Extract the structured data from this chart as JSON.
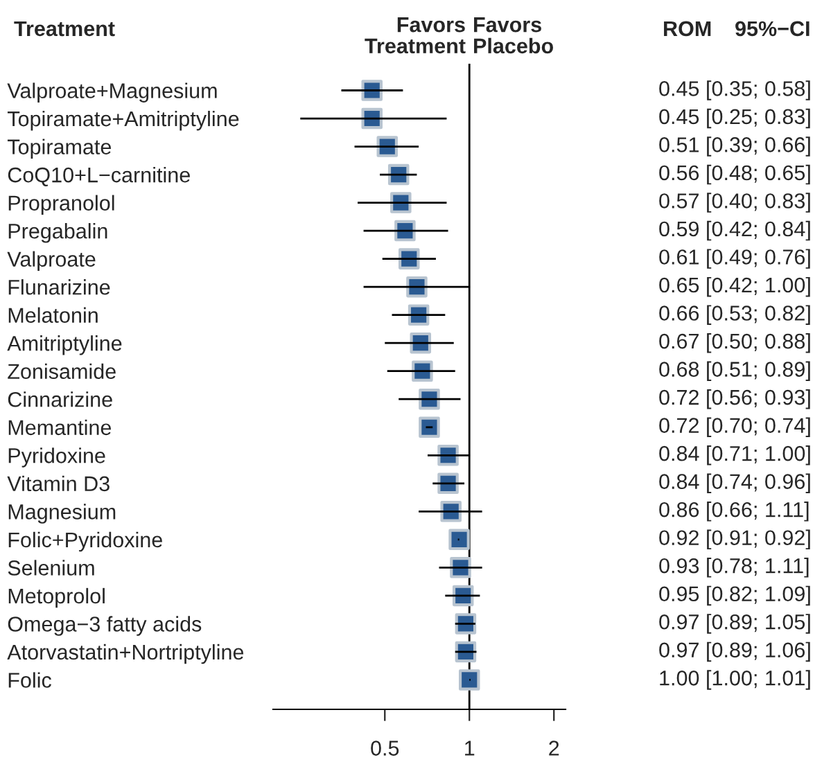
{
  "chart_data": {
    "type": "scatter",
    "orientation": "horizontal",
    "marker": "square",
    "log": "x",
    "color": "#2a5a92",
    "categories": [
      "Valproate+Magnesium",
      "Topiramate+Amitriptyline",
      "Topiramate",
      "CoQ10+L−carnitine",
      "Propranolol",
      "Pregabalin",
      "Valproate",
      "Flunarizine",
      "Melatonin",
      "Amitriptyline",
      "Zonisamide",
      "Cinnarizine",
      "Memantine",
      "Pyridoxine",
      "Vitamin D3",
      "Magnesium",
      "Folic+Pyridoxine",
      "Selenium",
      "Metoprolol",
      "Omega−3 fatty acids",
      "Atorvastatin+Nortriptyline",
      "Folic"
    ],
    "values": [
      0.45,
      0.45,
      0.51,
      0.56,
      0.57,
      0.59,
      0.61,
      0.65,
      0.66,
      0.67,
      0.68,
      0.72,
      0.72,
      0.84,
      0.84,
      0.86,
      0.92,
      0.93,
      0.95,
      0.97,
      0.97,
      1.0
    ],
    "errors": [
      [
        0.35,
        0.58
      ],
      [
        0.25,
        0.83
      ],
      [
        0.39,
        0.66
      ],
      [
        0.48,
        0.65
      ],
      [
        0.4,
        0.83
      ],
      [
        0.42,
        0.84
      ],
      [
        0.49,
        0.76
      ],
      [
        0.42,
        1.0
      ],
      [
        0.53,
        0.82
      ],
      [
        0.5,
        0.88
      ],
      [
        0.51,
        0.89
      ],
      [
        0.56,
        0.93
      ],
      [
        0.7,
        0.74
      ],
      [
        0.71,
        1.0
      ],
      [
        0.74,
        0.96
      ],
      [
        0.66,
        1.11
      ],
      [
        0.91,
        0.92
      ],
      [
        0.78,
        1.11
      ],
      [
        0.82,
        1.09
      ],
      [
        0.89,
        1.05
      ],
      [
        0.89,
        1.06
      ],
      [
        1.0,
        1.01
      ]
    ],
    "value_labels": [
      "0.45 [0.35; 0.58]",
      "0.45 [0.25; 0.83]",
      "0.51 [0.39; 0.66]",
      "0.56 [0.48; 0.65]",
      "0.57 [0.40; 0.83]",
      "0.59 [0.42; 0.84]",
      "0.61 [0.49; 0.76]",
      "0.65 [0.42; 1.00]",
      "0.66 [0.53; 0.82]",
      "0.67 [0.50; 0.88]",
      "0.68 [0.51; 0.89]",
      "0.72 [0.56; 0.93]",
      "0.72 [0.70; 0.74]",
      "0.84 [0.71; 1.00]",
      "0.84 [0.74; 0.96]",
      "0.86 [0.66; 1.11]",
      "0.92 [0.91; 0.92]",
      "0.93 [0.78; 1.11]",
      "0.95 [0.82; 1.09]",
      "0.97 [0.89; 1.05]",
      "0.97 [0.89; 1.06]",
      "1.00 [1.00; 1.01]"
    ],
    "xlim": [
      0.2,
      2.2
    ],
    "xticks": [
      0.5,
      1,
      2
    ],
    "ref_lines": [
      {
        "axis": "x",
        "value": 1,
        "color": "#000000"
      }
    ],
    "annotations": [
      "Treatment",
      "Favors\nTreatment",
      "Favors\nPlacebo",
      "ROM",
      "95%−CI"
    ]
  }
}
